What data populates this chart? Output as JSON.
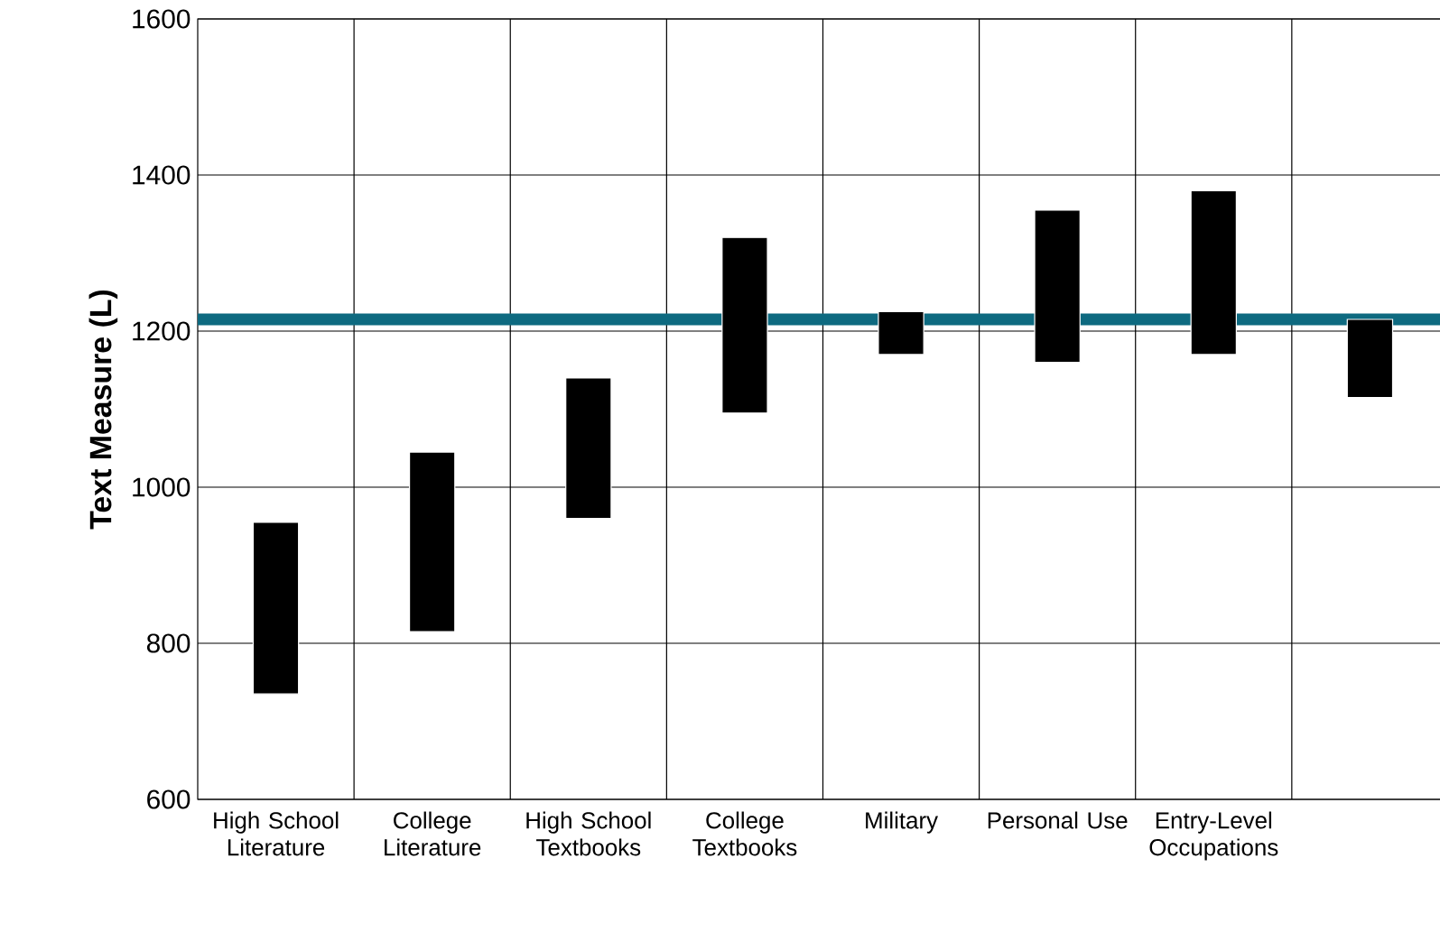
{
  "chart_data": {
    "type": "bar",
    "ylabel": "Text Measure (L)",
    "categories": [
      "High School Literature",
      "College Literature",
      "High School Textbooks",
      "College Textbooks",
      "Military",
      "Personal Use",
      "Entry-Level Occupations",
      null
    ],
    "base": [
      735,
      815,
      960,
      1095,
      1170,
      1160,
      1170,
      1115
    ],
    "values": [
      220,
      230,
      180,
      225,
      55,
      195,
      210,
      100
    ],
    "color": "#000000",
    "ylim": [
      600,
      1600
    ],
    "yticks": [
      600,
      800,
      1000,
      1200,
      1400,
      1600
    ],
    "grid": true,
    "ref_lines": [
      {
        "axis": "y",
        "value": 1215,
        "color": "#0e6a80"
      }
    ]
  }
}
